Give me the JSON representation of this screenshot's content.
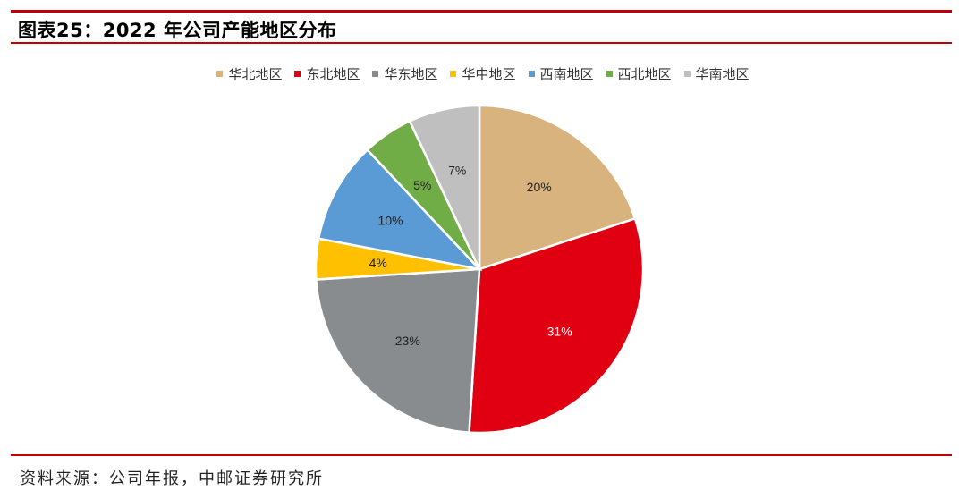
{
  "header": {
    "title": "图表25：2022 年公司产能地区分布"
  },
  "footer": {
    "source": "资料来源：公司年报，中邮证券研究所"
  },
  "chart_data": {
    "type": "pie",
    "title": "",
    "legend_position": "top",
    "slices": [
      {
        "name": "华北地区",
        "value": 20,
        "label": "20%",
        "color": "#D9B37E"
      },
      {
        "name": "东北地区",
        "value": 31,
        "label": "31%",
        "color": "#E00012"
      },
      {
        "name": "华东地区",
        "value": 23,
        "label": "23%",
        "color": "#898C8F"
      },
      {
        "name": "华中地区",
        "value": 4,
        "label": "4%",
        "color": "#FFC000"
      },
      {
        "name": "西南地区",
        "value": 10,
        "label": "10%",
        "color": "#5B9BD5"
      },
      {
        "name": "西北地区",
        "value": 5,
        "label": "5%",
        "color": "#70AD47"
      },
      {
        "name": "华南地区",
        "value": 7,
        "label": "7%",
        "color": "#BFBFBF"
      }
    ]
  }
}
